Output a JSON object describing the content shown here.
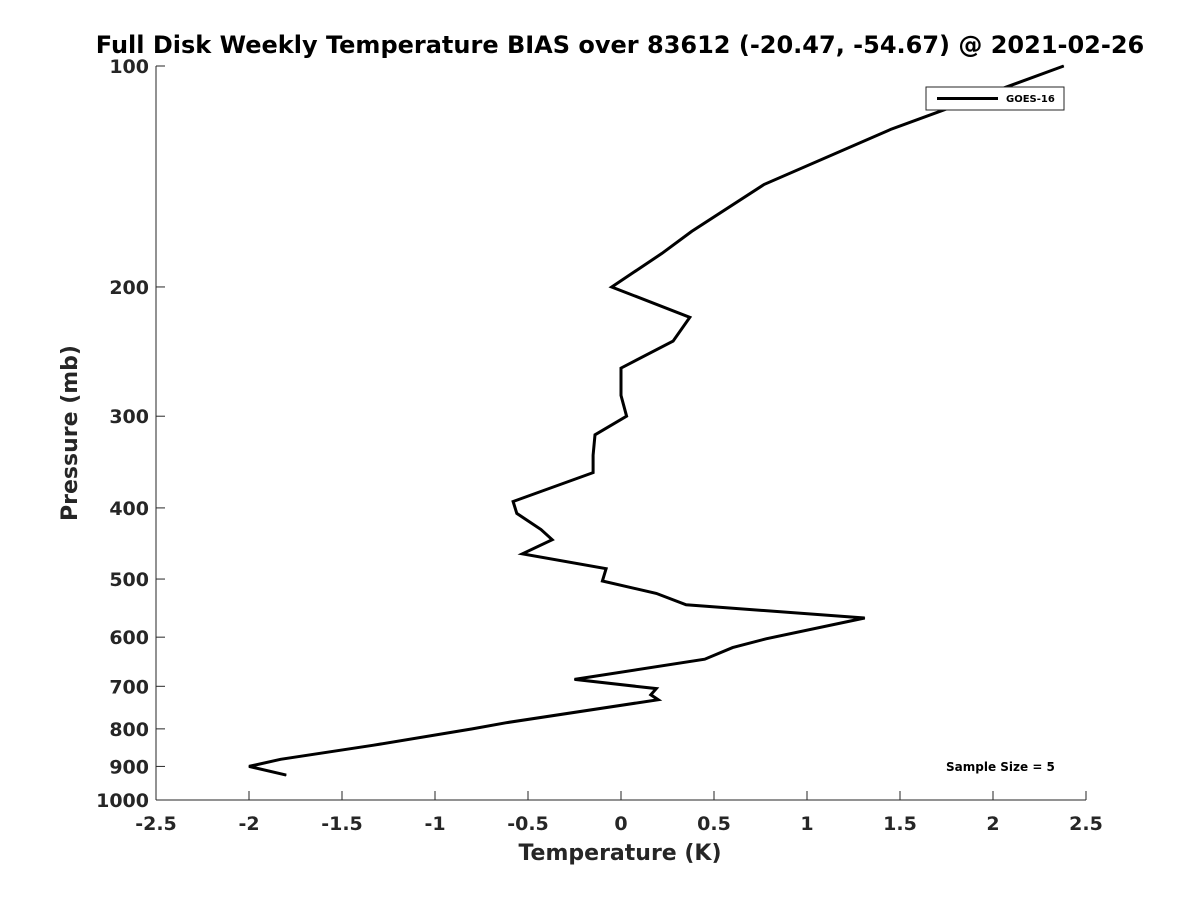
{
  "colors": {
    "background": "#ffffff",
    "axis": "#262626",
    "series": "#000000"
  },
  "chart_data": {
    "type": "line",
    "title": "Full Disk Weekly Temperature BIAS over 83612 (-20.47, -54.67) @ 2021-02-26",
    "xlabel": "Temperature (K)",
    "ylabel": "Pressure (mb)",
    "xlim": [
      -2.5,
      2.5
    ],
    "ylim": [
      100,
      1000
    ],
    "y_scale": "log",
    "y_reversed": true,
    "grid": false,
    "legend_position": "top-right",
    "x_ticks": [
      "-2.5",
      "-2",
      "-1.5",
      "-1",
      "-0.5",
      "0",
      "0.5",
      "1",
      "1.5",
      "2",
      "2.5"
    ],
    "y_ticks": [
      "100",
      "200",
      "300",
      "400",
      "500",
      "600",
      "700",
      "800",
      "900",
      "1000"
    ],
    "annotation": "Sample Size = 5",
    "series": [
      {
        "name": "GOES-16",
        "color": "#000000",
        "points": [
          {
            "x": 2.38,
            "y": 100
          },
          {
            "x": 1.45,
            "y": 122
          },
          {
            "x": 0.77,
            "y": 145
          },
          {
            "x": 0.38,
            "y": 168
          },
          {
            "x": 0.22,
            "y": 180
          },
          {
            "x": -0.05,
            "y": 200
          },
          {
            "x": 0.37,
            "y": 220
          },
          {
            "x": 0.28,
            "y": 237
          },
          {
            "x": 0.0,
            "y": 258
          },
          {
            "x": 0.0,
            "y": 281
          },
          {
            "x": 0.03,
            "y": 300
          },
          {
            "x": -0.14,
            "y": 318
          },
          {
            "x": -0.15,
            "y": 339
          },
          {
            "x": -0.15,
            "y": 358
          },
          {
            "x": -0.58,
            "y": 392
          },
          {
            "x": -0.56,
            "y": 407
          },
          {
            "x": -0.43,
            "y": 428
          },
          {
            "x": -0.37,
            "y": 442
          },
          {
            "x": -0.53,
            "y": 462
          },
          {
            "x": -0.08,
            "y": 484
          },
          {
            "x": -0.1,
            "y": 503
          },
          {
            "x": 0.19,
            "y": 523
          },
          {
            "x": 0.35,
            "y": 542
          },
          {
            "x": 1.31,
            "y": 565
          },
          {
            "x": 0.78,
            "y": 603
          },
          {
            "x": 0.6,
            "y": 620
          },
          {
            "x": 0.45,
            "y": 643
          },
          {
            "x": -0.25,
            "y": 685
          },
          {
            "x": 0.19,
            "y": 705
          },
          {
            "x": 0.16,
            "y": 719
          },
          {
            "x": 0.2,
            "y": 730
          },
          {
            "x": -0.62,
            "y": 785
          },
          {
            "x": -0.8,
            "y": 800
          },
          {
            "x": -1.33,
            "y": 842
          },
          {
            "x": -1.83,
            "y": 880
          },
          {
            "x": -2.0,
            "y": 900
          },
          {
            "x": -1.8,
            "y": 925
          }
        ]
      }
    ]
  }
}
